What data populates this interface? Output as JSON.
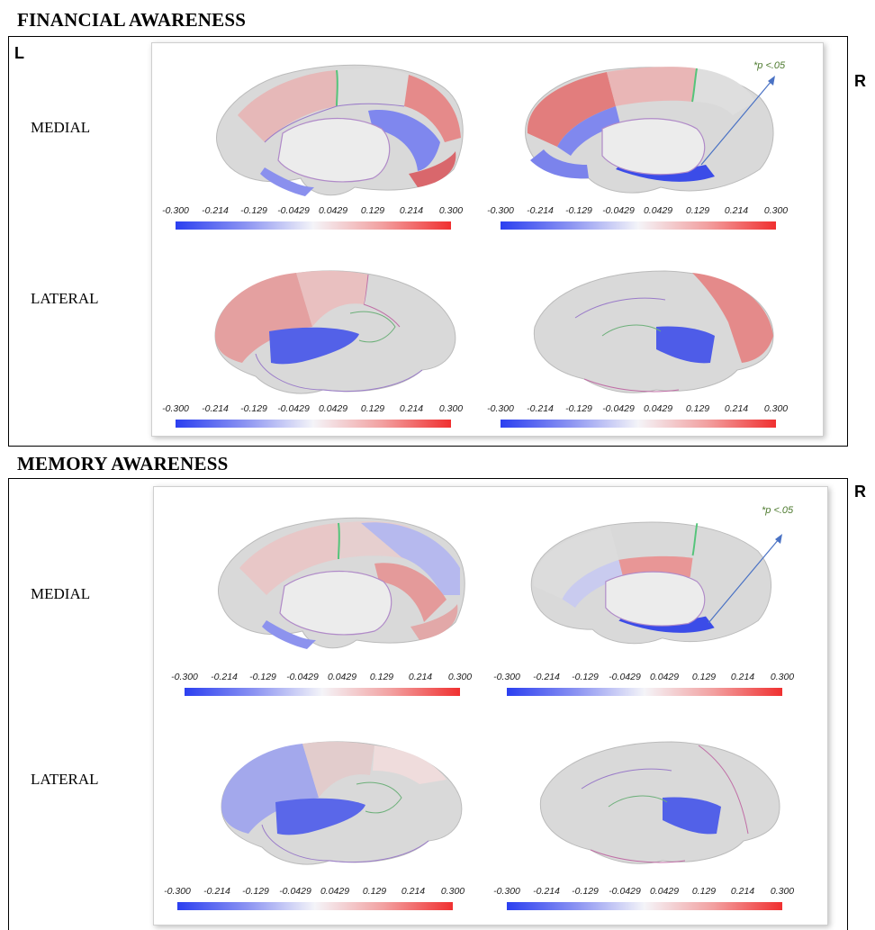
{
  "sections": [
    {
      "title": "FINANCIAL AWARENESS",
      "left_label": "L",
      "right_label": "R",
      "medial_label": "MEDIAL",
      "lateral_label": "LATERAL",
      "p_note": "*p <.05"
    },
    {
      "title": "MEMORY AWARENESS",
      "right_label": "R",
      "medial_label": "MEDIAL",
      "lateral_label": "LATERAL",
      "p_note": "*p <.05"
    }
  ],
  "colorbar": {
    "ticks": [
      "-0.300",
      "-0.214",
      "-0.129",
      "-0.0429",
      "0.0429",
      "0.129",
      "0.214",
      "0.300"
    ],
    "min_color": "#2b3ff0",
    "mid_color": "#f4f4f8",
    "max_color": "#f03030"
  },
  "colors": {
    "positive": "#e06868",
    "negative": "#6b72e8",
    "cortex": "#d4d4d4",
    "sulci": "#b9b9b9"
  }
}
